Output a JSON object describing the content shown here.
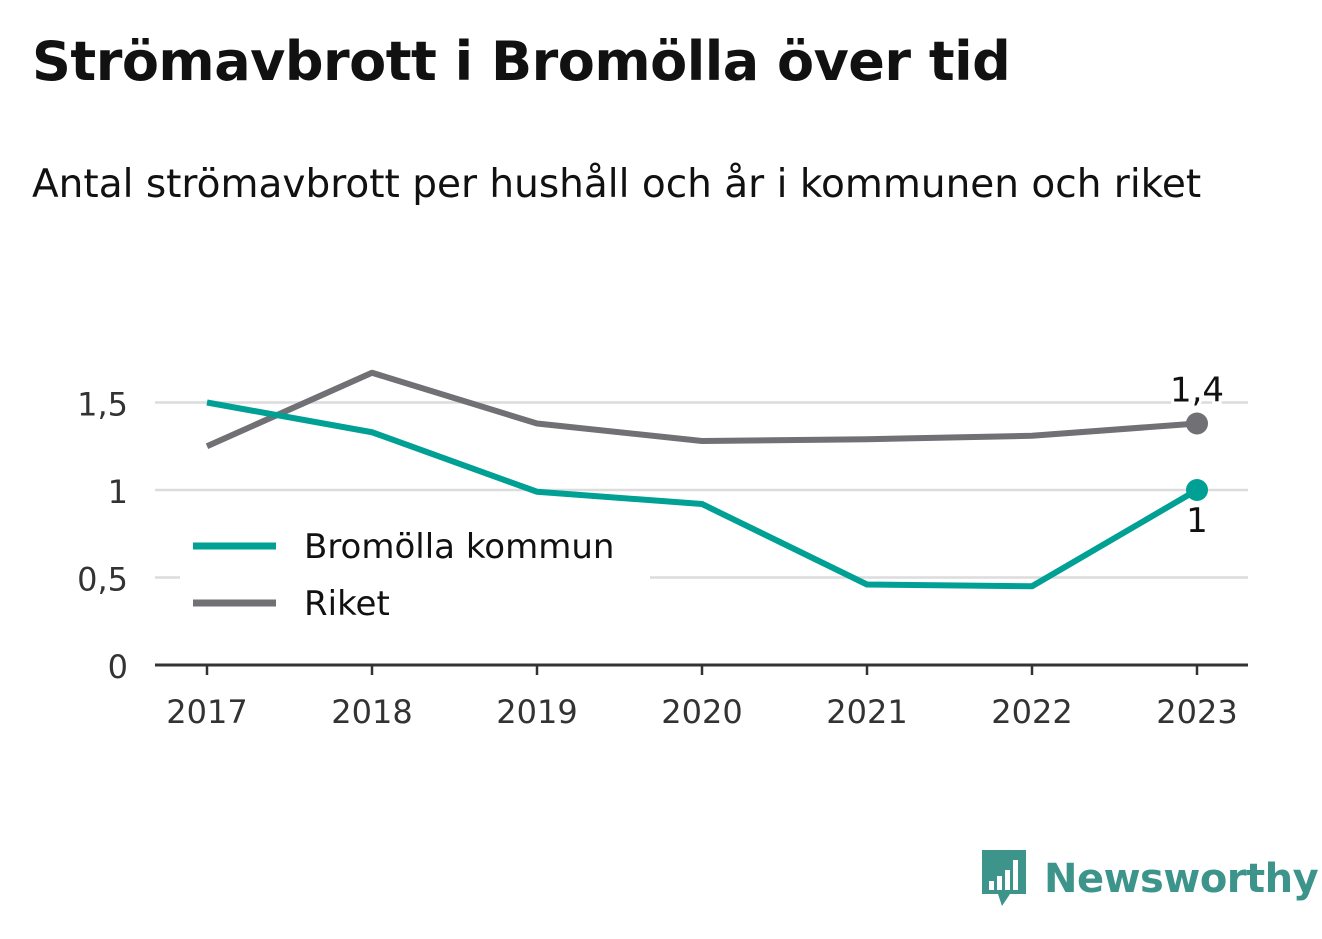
{
  "header": {
    "title": "Strömavbrott i Bromölla över tid",
    "subtitle": "Antal strömavbrott per hushåll och år i kommunen och riket"
  },
  "chart_data": {
    "type": "line",
    "title": "Strömavbrott i Bromölla över tid",
    "subtitle": "Antal strömavbrott per hushåll och år i kommunen och riket",
    "x": [
      "2017",
      "2018",
      "2019",
      "2020",
      "2021",
      "2022",
      "2023"
    ],
    "series": [
      {
        "name": "Bromölla kommun",
        "color": "#00a095",
        "values": [
          1.5,
          1.33,
          0.99,
          0.92,
          0.46,
          0.45,
          1.0
        ]
      },
      {
        "name": "Riket",
        "color": "#707075",
        "values": [
          1.25,
          1.67,
          1.38,
          1.28,
          1.29,
          1.31,
          1.38
        ]
      }
    ],
    "end_labels": [
      "1",
      "1,4"
    ],
    "yticks": [
      0,
      0.5,
      1,
      1.5
    ],
    "ytick_labels": [
      "0",
      "0,5",
      "1",
      "1,5"
    ],
    "ylim": [
      0,
      1.75
    ],
    "xlabel": "",
    "ylabel": "",
    "grid": true,
    "legend_position": "left"
  },
  "brand": {
    "name": "Newsworthy",
    "color": "#3d948b"
  }
}
